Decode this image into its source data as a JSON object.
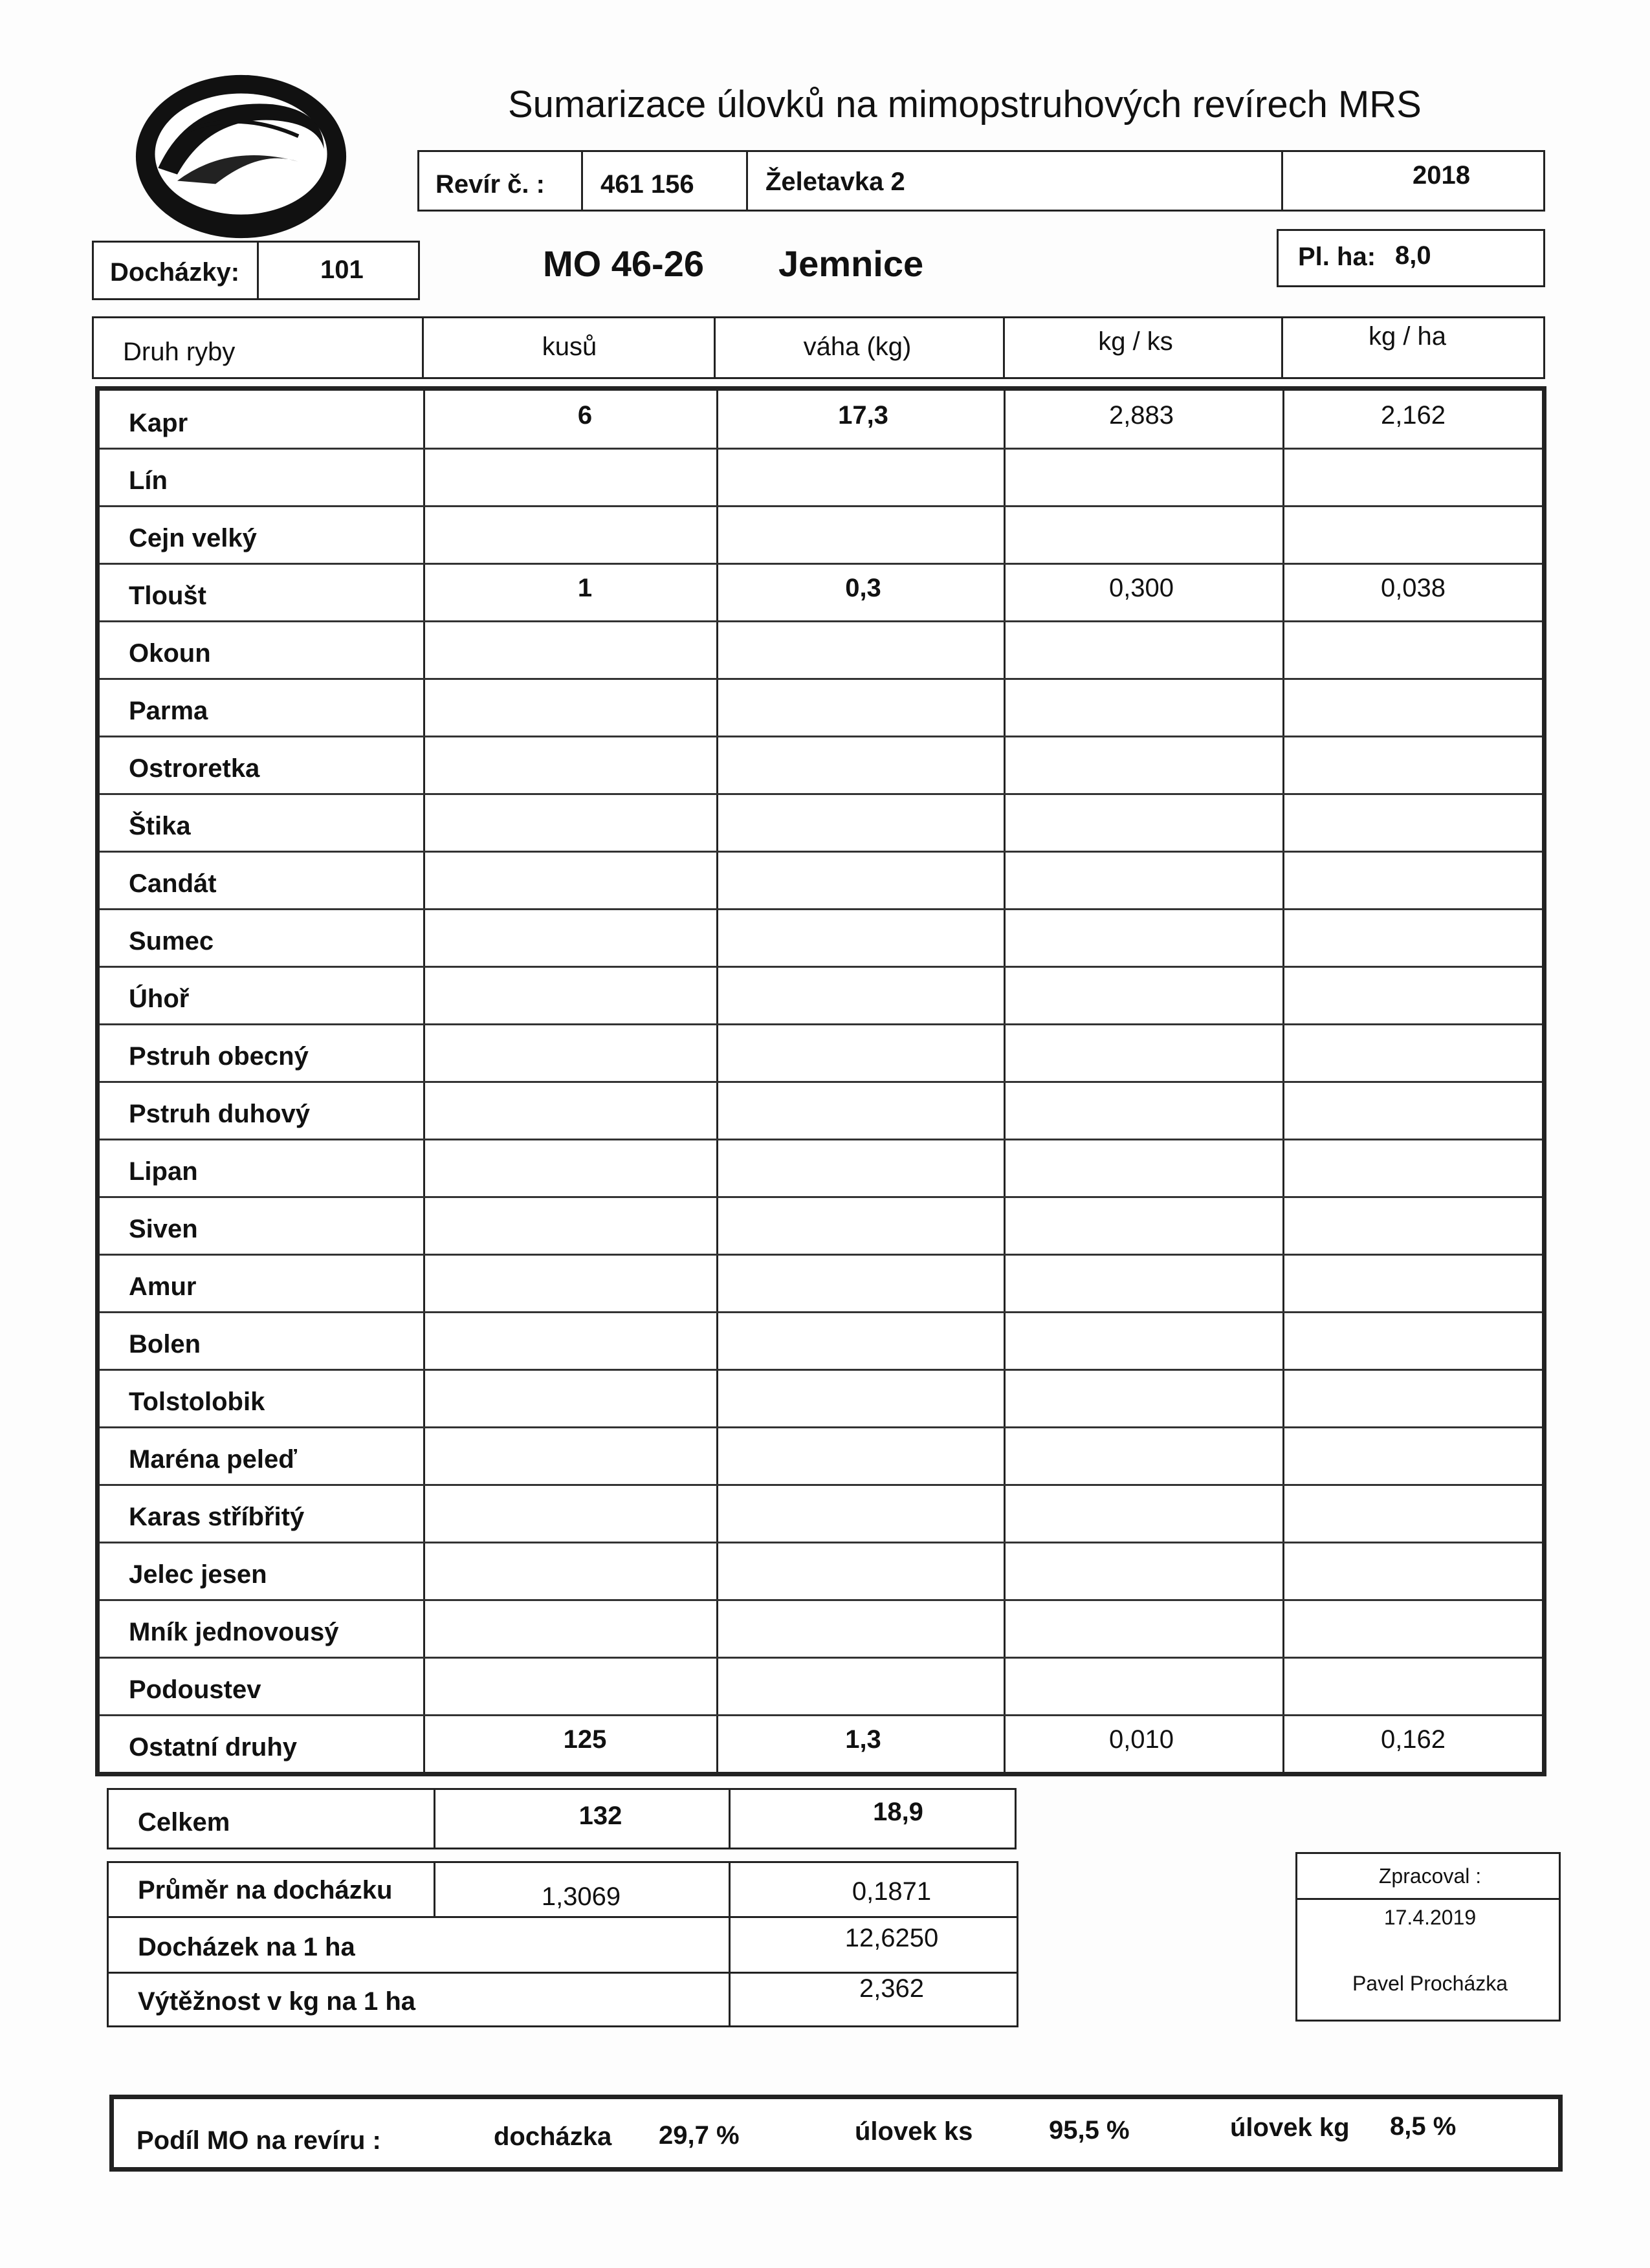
{
  "header": {
    "title": "Sumarizace úlovků na mimopstruhových revírech MRS",
    "revir_label": "Revír č. :",
    "revir_number": "461 156",
    "revir_name": "Želetavka 2",
    "year": "2018",
    "dochazky_label": "Docházky:",
    "dochazky_value": "101",
    "mo_code": "MO  46-26",
    "mo_name": "Jemnice",
    "area_label": "Pl. ha:",
    "area_value": "8,0"
  },
  "columns": [
    "Druh ryby",
    "kusů",
    "váha (kg)",
    "kg / ks",
    "kg / ha"
  ],
  "rows": [
    {
      "species": "Kapr",
      "kusu": "6",
      "vaha": "17,3",
      "kg_ks": "2,883",
      "kg_ha": "2,162"
    },
    {
      "species": "Lín",
      "kusu": "",
      "vaha": "",
      "kg_ks": "",
      "kg_ha": ""
    },
    {
      "species": "Cejn velký",
      "kusu": "",
      "vaha": "",
      "kg_ks": "",
      "kg_ha": ""
    },
    {
      "species": "Tloušt",
      "kusu": "1",
      "vaha": "0,3",
      "kg_ks": "0,300",
      "kg_ha": "0,038"
    },
    {
      "species": "Okoun",
      "kusu": "",
      "vaha": "",
      "kg_ks": "",
      "kg_ha": ""
    },
    {
      "species": "Parma",
      "kusu": "",
      "vaha": "",
      "kg_ks": "",
      "kg_ha": ""
    },
    {
      "species": "Ostroretka",
      "kusu": "",
      "vaha": "",
      "kg_ks": "",
      "kg_ha": ""
    },
    {
      "species": "Štika",
      "kusu": "",
      "vaha": "",
      "kg_ks": "",
      "kg_ha": ""
    },
    {
      "species": "Candát",
      "kusu": "",
      "vaha": "",
      "kg_ks": "",
      "kg_ha": ""
    },
    {
      "species": "Sumec",
      "kusu": "",
      "vaha": "",
      "kg_ks": "",
      "kg_ha": ""
    },
    {
      "species": "Úhoř",
      "kusu": "",
      "vaha": "",
      "kg_ks": "",
      "kg_ha": ""
    },
    {
      "species": "Pstruh obecný",
      "kusu": "",
      "vaha": "",
      "kg_ks": "",
      "kg_ha": ""
    },
    {
      "species": "Pstruh duhový",
      "kusu": "",
      "vaha": "",
      "kg_ks": "",
      "kg_ha": ""
    },
    {
      "species": "Lipan",
      "kusu": "",
      "vaha": "",
      "kg_ks": "",
      "kg_ha": ""
    },
    {
      "species": "Siven",
      "kusu": "",
      "vaha": "",
      "kg_ks": "",
      "kg_ha": ""
    },
    {
      "species": "Amur",
      "kusu": "",
      "vaha": "",
      "kg_ks": "",
      "kg_ha": ""
    },
    {
      "species": "Bolen",
      "kusu": "",
      "vaha": "",
      "kg_ks": "",
      "kg_ha": ""
    },
    {
      "species": "Tolstolobik",
      "kusu": "",
      "vaha": "",
      "kg_ks": "",
      "kg_ha": ""
    },
    {
      "species": "Maréna peleď",
      "kusu": "",
      "vaha": "",
      "kg_ks": "",
      "kg_ha": ""
    },
    {
      "species": "Karas stříbřitý",
      "kusu": "",
      "vaha": "",
      "kg_ks": "",
      "kg_ha": ""
    },
    {
      "species": "Jelec jesen",
      "kusu": "",
      "vaha": "",
      "kg_ks": "",
      "kg_ha": ""
    },
    {
      "species": "Mník jednovousý",
      "kusu": "",
      "vaha": "",
      "kg_ks": "",
      "kg_ha": ""
    },
    {
      "species": "Podoustev",
      "kusu": "",
      "vaha": "",
      "kg_ks": "",
      "kg_ha": ""
    },
    {
      "species": "Ostatní druhy",
      "kusu": "125",
      "vaha": "1,3",
      "kg_ks": "0,010",
      "kg_ha": "0,162"
    }
  ],
  "totals": {
    "label": "Celkem",
    "kusu": "132",
    "vaha": "18,9"
  },
  "stats": {
    "avg_label": "Průměr na docházku",
    "avg_kusu": "1,3069",
    "avg_vaha": "0,1871",
    "per_ha_label": "Docházek na 1 ha",
    "per_ha_value": "12,6250",
    "yield_label": "Výtěžnost v kg na 1 ha",
    "yield_value": "2,362"
  },
  "processed": {
    "label": "Zpracoval :",
    "date": "17.4.2019",
    "name": "Pavel Procházka"
  },
  "share": {
    "label": "Podíl MO na revíru :",
    "dochazka_label": "docházka",
    "dochazka_value": "29,7 %",
    "ks_label": "úlovek ks",
    "ks_value": "95,5 %",
    "kg_label": "úlovek kg",
    "kg_value": "8,5 %"
  },
  "logo": {
    "icon": "catfish-emblem-icon"
  }
}
